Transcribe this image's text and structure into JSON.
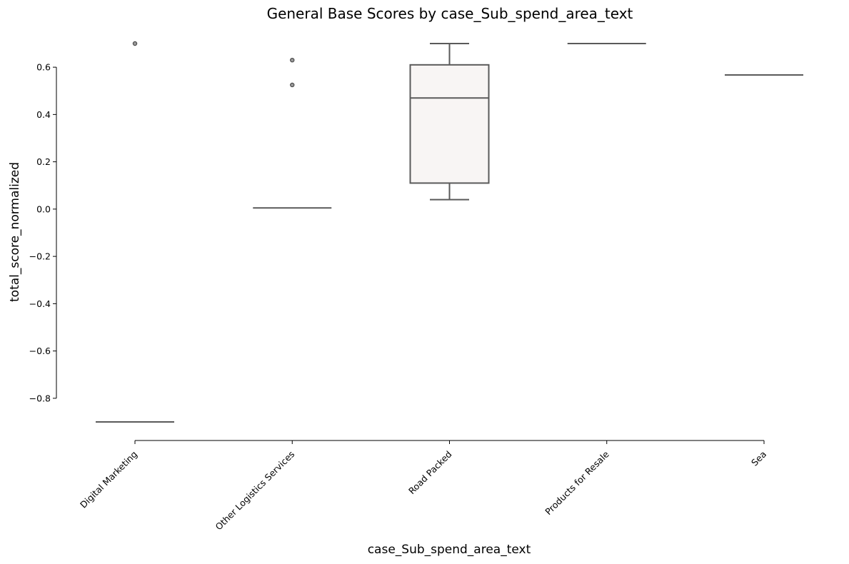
{
  "chart_data": {
    "type": "box",
    "title": "General Base Scores by case_Sub_spend_area_text",
    "xlabel": "case_Sub_spend_area_text",
    "ylabel": "total_score_normalized",
    "ylim": [
      -0.98,
      0.75
    ],
    "yticks": [
      0.6,
      0.4,
      0.2,
      0.0,
      -0.2,
      -0.4,
      -0.6,
      -0.8
    ],
    "ytick_labels": [
      "0.6",
      "0.4",
      "0.2",
      "0.0",
      "−0.2",
      "−0.4",
      "−0.6",
      "−0.8"
    ],
    "categories": [
      "Digital Marketing",
      "Other Logistics Services",
      "Road Packed",
      "Products for Resale",
      "Sea"
    ],
    "boxes": [
      {
        "q1": -0.9,
        "median": -0.9,
        "q3": -0.9,
        "whisker_low": -0.9,
        "whisker_high": -0.9,
        "outliers": [
          0.7
        ]
      },
      {
        "q1": 0.005,
        "median": 0.005,
        "q3": 0.005,
        "whisker_low": 0.005,
        "whisker_high": 0.005,
        "outliers": [
          0.63,
          0.525
        ]
      },
      {
        "q1": 0.11,
        "median": 0.47,
        "q3": 0.61,
        "whisker_low": 0.04,
        "whisker_high": 0.7,
        "outliers": []
      },
      {
        "q1": 0.7,
        "median": 0.7,
        "q3": 0.7,
        "whisker_low": 0.7,
        "whisker_high": 0.7,
        "outliers": []
      },
      {
        "q1": 0.567,
        "median": 0.567,
        "q3": 0.567,
        "whisker_low": 0.567,
        "whisker_high": 0.567,
        "outliers": []
      }
    ],
    "colors": {
      "box_fill": "#f8f5f4",
      "line": "#5a5a5a",
      "flier": "#9a9a9a"
    },
    "grid": false,
    "legend": "none"
  }
}
